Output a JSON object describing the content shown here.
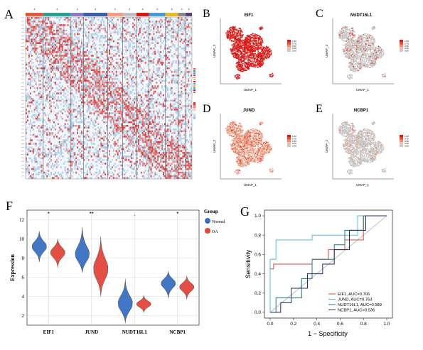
{
  "panels": {
    "A": {
      "letter": "A"
    },
    "B": {
      "letter": "B",
      "title": "EIF1",
      "xlabel": "UMAP_1",
      "ylabel": "UMAP_2"
    },
    "C": {
      "letter": "C",
      "title": "NUDT16L1",
      "xlabel": "UMAP_1",
      "ylabel": "UMAP_2"
    },
    "D": {
      "letter": "D",
      "title": "JUND",
      "xlabel": "UMAP_1",
      "ylabel": "UMAP_2"
    },
    "E": {
      "letter": "E",
      "title": "NCBP1",
      "xlabel": "UMAP_1",
      "ylabel": "UMAP_2"
    },
    "F": {
      "letter": "F"
    },
    "G": {
      "letter": "G"
    }
  },
  "umap_scale": {
    "ticks": [
      "1.00",
      "0.75",
      "0.50",
      "0.25",
      "0.00"
    ],
    "colors": [
      "#d7191c",
      "#e34a33",
      "#f08a6a",
      "#e8c0b0",
      "#c8c8c8"
    ]
  },
  "colors": {
    "normal": "#3a6fc4",
    "oa": "#e2463a",
    "heat_red": "#d6322e",
    "heat_blue": "#9ec3e3"
  },
  "chart_data": [
    {
      "type": "heatmap",
      "panel": "A",
      "group_bar_colors": [
        "#e05a3c",
        "#2aa198",
        "#8e7cc3",
        "#3b5ea8",
        "#f49c7c",
        "#c0c0c0",
        "#d7191c",
        "#4a9bd4",
        "#e8b923",
        "#8a8a8a",
        "#5a3d8a"
      ]
    },
    {
      "type": "violin",
      "panel": "F",
      "categories": [
        "EIF1",
        "JUND",
        "NUDT16L1",
        "NCBP1"
      ],
      "ylabel": "Expression",
      "yticks": [
        2,
        4,
        6,
        8,
        10,
        12
      ],
      "ylim": [
        1,
        13
      ],
      "significance": [
        "*",
        "**",
        ".",
        "*"
      ],
      "legend_title": "Group",
      "series": [
        {
          "name": "Normal",
          "centers": [
            9.2,
            8.3,
            3.2,
            5.4
          ],
          "range": [
            [
              7.6,
              10.8
            ],
            [
              6.5,
              11.2
            ],
            [
              1.2,
              5.8
            ],
            [
              3.8,
              6.6
            ]
          ]
        },
        {
          "name": "OA",
          "centers": [
            8.6,
            6.8,
            3.2,
            5.0
          ],
          "range": [
            [
              7.0,
              10.0
            ],
            [
              4.0,
              10.2
            ],
            [
              2.3,
              4.1
            ],
            [
              3.7,
              6.1
            ]
          ]
        }
      ]
    },
    {
      "type": "line",
      "panel": "G",
      "xlabel": "1 − Specificity",
      "ylabel": "Sensitivity",
      "xlim": [
        0,
        1
      ],
      "ylim": [
        0,
        1
      ],
      "ticks": [
        "0.0",
        "0.2",
        "0.4",
        "0.6",
        "0.8",
        "1.0"
      ],
      "series": [
        {
          "name": "EIF1, AUC=0.706",
          "color": "#e2463a",
          "fpr": [
            0,
            0,
            0.03,
            0.03,
            0.36,
            0.36,
            0.5,
            0.5,
            0.64,
            0.64,
            0.8,
            0.8,
            1
          ],
          "tpr": [
            0,
            0.45,
            0.45,
            0.5,
            0.5,
            0.55,
            0.55,
            0.65,
            0.65,
            0.75,
            0.75,
            1,
            1
          ]
        },
        {
          "name": "JUND, AUC=0.763",
          "color": "#5bb8d8",
          "fpr": [
            0,
            0,
            0.05,
            0.05,
            0.36,
            0.36,
            0.75,
            0.75,
            1
          ],
          "tpr": [
            0,
            0.55,
            0.55,
            0.75,
            0.75,
            0.8,
            0.8,
            1,
            1
          ]
        },
        {
          "name": "NUDT16L1, AUC=0.589",
          "color": "#1f7a7a",
          "fpr": [
            0,
            0.05,
            0.05,
            0.27,
            0.27,
            0.36,
            0.36,
            0.55,
            0.55,
            0.64,
            0.64,
            0.8,
            0.8,
            1
          ],
          "tpr": [
            0,
            0,
            0.15,
            0.15,
            0.35,
            0.35,
            0.55,
            0.55,
            0.7,
            0.7,
            0.85,
            0.85,
            1,
            1
          ]
        },
        {
          "name": "NCBP1, AUC=0.536",
          "color": "#1c2f6b",
          "fpr": [
            0,
            0.09,
            0.09,
            0.18,
            0.18,
            0.32,
            0.32,
            0.45,
            0.45,
            0.55,
            0.55,
            0.68,
            0.68,
            0.82,
            0.82,
            1
          ],
          "tpr": [
            0,
            0,
            0.1,
            0.1,
            0.25,
            0.25,
            0.4,
            0.4,
            0.5,
            0.5,
            0.65,
            0.65,
            0.85,
            0.85,
            1,
            1
          ]
        }
      ]
    }
  ]
}
